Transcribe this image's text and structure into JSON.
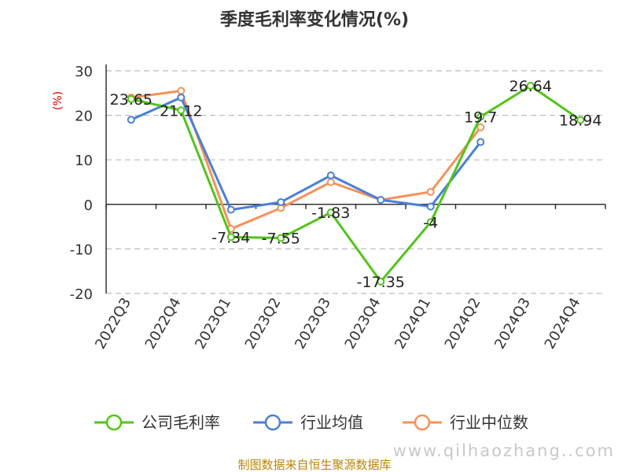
{
  "chart_data": {
    "type": "line",
    "title": "季度毛利率变化情况(%)",
    "ylabel": "(%)",
    "xlabel": "",
    "ylim": [
      -20,
      30
    ],
    "yticks": [
      30,
      20,
      10,
      0,
      -10,
      -20
    ],
    "grid": true,
    "legend_position": "bottom",
    "categories": [
      "2022Q3",
      "2022Q4",
      "2023Q1",
      "2023Q2",
      "2023Q3",
      "2023Q4",
      "2024Q1",
      "2024Q2",
      "2024Q3",
      "2024Q4"
    ],
    "series": [
      {
        "name": "公司毛利率",
        "color": "#52c41a",
        "values": [
          23.65,
          21.12,
          -7.34,
          -7.55,
          -1.83,
          -17.35,
          -4,
          19.7,
          26.64,
          18.94
        ],
        "labels": [
          "23.65",
          "21.12",
          "-7.34",
          "-7.55",
          "-1.83",
          "-17.35",
          "-4",
          "19.7",
          "26.64",
          "18.94"
        ]
      },
      {
        "name": "行业均值",
        "color": "#4a7fd8",
        "values": [
          19,
          24,
          -1.2,
          0.5,
          6.5,
          1,
          -0.5,
          14,
          null,
          null
        ]
      },
      {
        "name": "行业中位数",
        "color": "#f5915a",
        "values": [
          24,
          25.5,
          -5.5,
          -0.8,
          5,
          1,
          2.8,
          17.3,
          null,
          null
        ]
      }
    ]
  },
  "footer": "制图数据来自恒生聚源数据库",
  "watermark": "www.qilhaozhang..com"
}
